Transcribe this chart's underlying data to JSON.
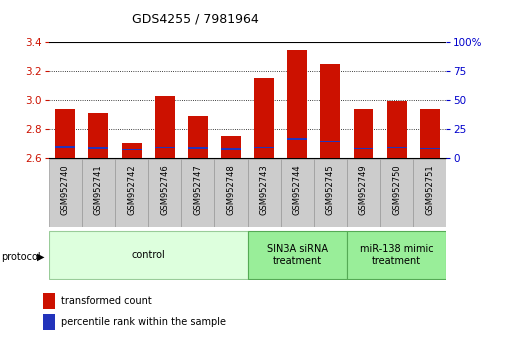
{
  "title": "GDS4255 / 7981964",
  "samples": [
    "GSM952740",
    "GSM952741",
    "GSM952742",
    "GSM952746",
    "GSM952747",
    "GSM952748",
    "GSM952743",
    "GSM952744",
    "GSM952745",
    "GSM952749",
    "GSM952750",
    "GSM952751"
  ],
  "red_values": [
    2.94,
    2.91,
    2.7,
    3.03,
    2.89,
    2.75,
    3.15,
    3.35,
    3.25,
    2.94,
    2.99,
    2.94
  ],
  "blue_values": [
    2.672,
    2.666,
    2.657,
    2.669,
    2.666,
    2.659,
    2.669,
    2.729,
    2.71,
    2.661,
    2.669,
    2.663
  ],
  "ymin": 2.6,
  "ymax": 3.4,
  "y2min": 0,
  "y2max": 100,
  "yticks": [
    2.6,
    2.8,
    3.0,
    3.2,
    3.4
  ],
  "y2ticks": [
    0,
    25,
    50,
    75,
    100
  ],
  "y2ticklabels": [
    "0",
    "25",
    "50",
    "75",
    "100%"
  ],
  "bar_color": "#cc1100",
  "blue_color": "#2233bb",
  "bar_width": 0.6,
  "groups": [
    {
      "label": "control",
      "start": 0,
      "end": 6,
      "color": "#ddffdd",
      "edge": "#99cc99"
    },
    {
      "label": "SIN3A siRNA\ntreatment",
      "start": 6,
      "end": 9,
      "color": "#99ee99",
      "edge": "#55aa55"
    },
    {
      "label": "miR-138 mimic\ntreatment",
      "start": 9,
      "end": 12,
      "color": "#99ee99",
      "edge": "#55aa55"
    }
  ],
  "legend_red": "transformed count",
  "legend_blue": "percentile rank within the sample",
  "bar_color_red": "#cc1100",
  "ylabel_left_color": "#cc1100",
  "ylabel_right_color": "#0000cc",
  "grid_color": "#000000",
  "label_box_color": "#cccccc",
  "label_box_edge": "#999999"
}
